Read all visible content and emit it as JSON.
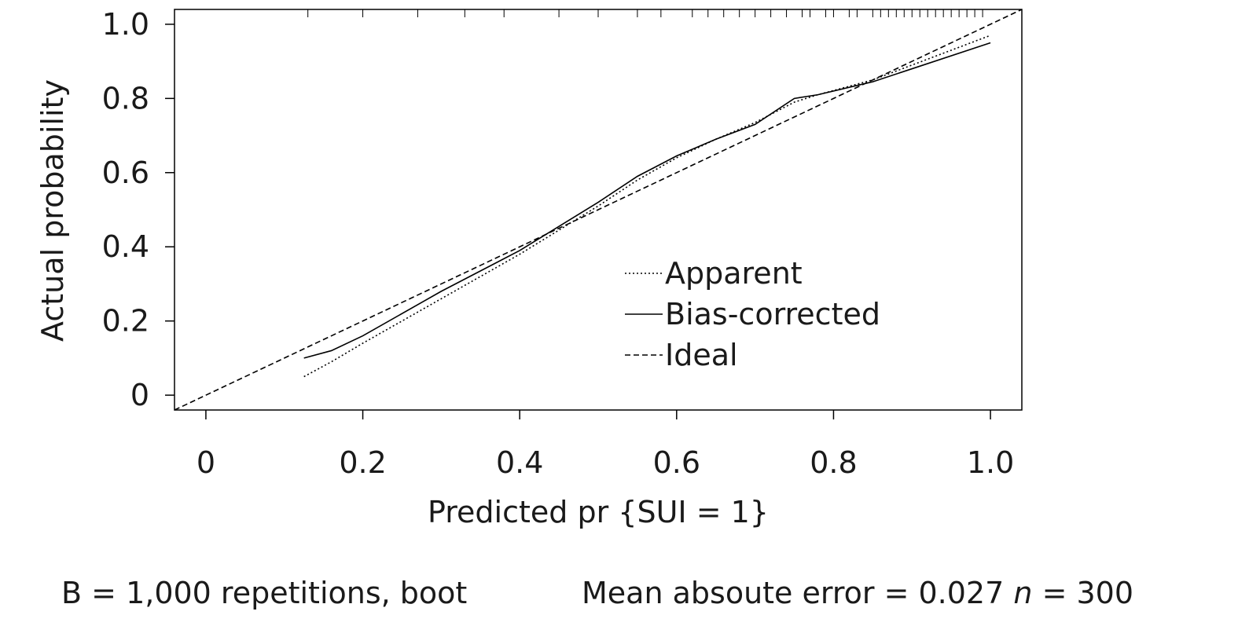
{
  "chart_data": {
    "type": "line",
    "x_label": "Predicted pr {SUI = 1}",
    "y_label": "Actual probability",
    "xlim": [
      -0.04,
      1.04
    ],
    "ylim": [
      -0.04,
      1.04
    ],
    "xticks": [
      0,
      0.2,
      0.4,
      0.6,
      0.8,
      {
        "value": 1,
        "label": "1.0"
      }
    ],
    "yticks": [
      0,
      0.2,
      0.4,
      0.6,
      0.8,
      {
        "value": 1,
        "label": "1.0"
      }
    ],
    "grid": false,
    "series": [
      {
        "name": "Apparent",
        "color": "#000000",
        "style": "dotted",
        "x": [
          0.125,
          0.16,
          0.2,
          0.3,
          0.4,
          0.5,
          0.55,
          0.6,
          0.65,
          0.7,
          0.75,
          0.78,
          0.85,
          0.9,
          1.0
        ],
        "values": [
          0.05,
          0.09,
          0.14,
          0.26,
          0.38,
          0.51,
          0.58,
          0.64,
          0.69,
          0.735,
          0.79,
          0.81,
          0.85,
          0.89,
          0.97
        ]
      },
      {
        "name": "Bias-corrected",
        "color": "#000000",
        "style": "solid",
        "x": [
          0.125,
          0.16,
          0.2,
          0.3,
          0.4,
          0.5,
          0.55,
          0.6,
          0.65,
          0.7,
          0.75,
          0.78,
          0.85,
          0.9,
          1.0
        ],
        "values": [
          0.1,
          0.12,
          0.16,
          0.28,
          0.39,
          0.52,
          0.59,
          0.645,
          0.69,
          0.73,
          0.8,
          0.81,
          0.845,
          0.88,
          0.95
        ]
      },
      {
        "name": "Ideal",
        "color": "#000000",
        "style": "dashed",
        "x": [
          -0.04,
          1.04
        ],
        "values": [
          -0.04,
          1.04
        ]
      }
    ],
    "rug": [
      0.13,
      0.2,
      0.27,
      0.33,
      0.38,
      0.45,
      0.5,
      0.55,
      0.58,
      0.62,
      0.64,
      0.66,
      0.68,
      0.7,
      0.72,
      0.74,
      0.76,
      0.77,
      0.79,
      0.8,
      0.82,
      0.83,
      0.85,
      0.86,
      0.87,
      0.88,
      0.89,
      0.9,
      0.91,
      0.92,
      0.93,
      0.94,
      0.95,
      0.96,
      0.97,
      0.98,
      0.99
    ],
    "note_left": "B = 1,000 repetitions, boot",
    "note_right": "Mean absoute error = 0.027",
    "note_n": "n",
    "note_n_value": "= 300"
  }
}
